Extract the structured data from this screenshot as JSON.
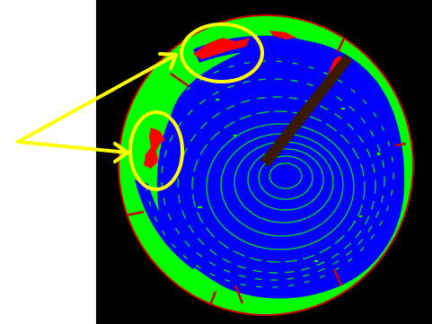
{
  "figure": {
    "kind": "segmented-cross-section-image",
    "colors": {
      "background": "#000000",
      "surround": "#ffffff",
      "region_green": "#00ff00",
      "region_blue": "#0000ff",
      "region_red": "#ff0000",
      "rim": "#cc0000",
      "annotation": "#ffff00",
      "crack": "#3a1a00"
    },
    "annotation_marks": [
      "ellipse-top",
      "ellipse-left",
      "arrow-top",
      "arrow-left"
    ]
  }
}
